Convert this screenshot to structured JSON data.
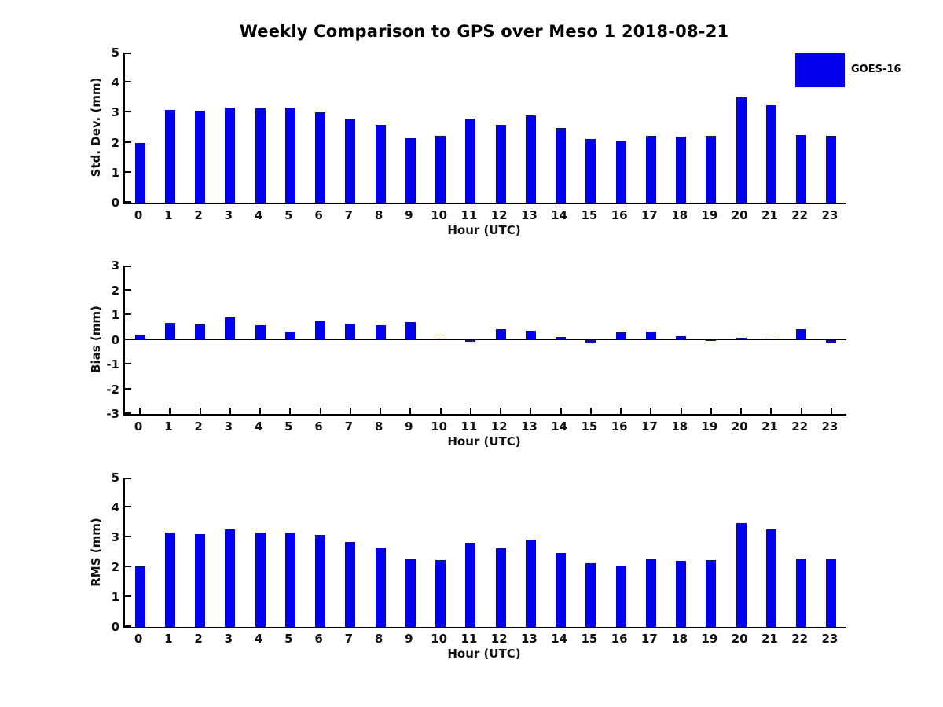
{
  "title": "Weekly Comparison to GPS over Meso 1 2018-08-21",
  "legend": {
    "label": "GOES-16",
    "position": "top-right"
  },
  "colors": {
    "bar": "#0000EE",
    "axis": "#000000",
    "text": "#111111",
    "background": "#FFFFFF"
  },
  "chart_data": [
    {
      "type": "bar",
      "ylabel": "Std. Dev. (mm)",
      "xlabel": "Hour (UTC)",
      "ylim": [
        0,
        5
      ],
      "yticks": [
        0,
        1,
        2,
        3,
        4,
        5
      ],
      "grid": false,
      "categories": [
        "0",
        "1",
        "2",
        "3",
        "4",
        "5",
        "6",
        "7",
        "8",
        "9",
        "10",
        "11",
        "12",
        "13",
        "14",
        "15",
        "16",
        "17",
        "18",
        "19",
        "20",
        "21",
        "22",
        "23"
      ],
      "series": [
        {
          "name": "GOES-16",
          "values": [
            1.98,
            3.1,
            3.05,
            3.17,
            3.14,
            3.17,
            3.02,
            2.78,
            2.6,
            2.15,
            2.22,
            2.8,
            2.6,
            2.9,
            2.49,
            2.12,
            2.04,
            2.22,
            2.2,
            2.22,
            3.5,
            3.24,
            2.25,
            2.22
          ]
        }
      ]
    },
    {
      "type": "bar",
      "ylabel": "Bias (mm)",
      "xlabel": "Hour (UTC)",
      "ylim": [
        -3,
        3
      ],
      "yticks": [
        -3,
        -2,
        -1,
        0,
        1,
        2,
        3
      ],
      "grid": false,
      "categories": [
        "0",
        "1",
        "2",
        "3",
        "4",
        "5",
        "6",
        "7",
        "8",
        "9",
        "10",
        "11",
        "12",
        "13",
        "14",
        "15",
        "16",
        "17",
        "18",
        "19",
        "20",
        "21",
        "22",
        "23"
      ],
      "series": [
        {
          "name": "GOES-16",
          "values": [
            0.2,
            0.67,
            0.61,
            0.9,
            0.58,
            0.33,
            0.77,
            0.64,
            0.58,
            0.73,
            0.05,
            -0.08,
            0.42,
            0.35,
            0.11,
            -0.1,
            0.3,
            0.34,
            0.13,
            -0.02,
            0.07,
            0.04,
            0.42,
            -0.1
          ]
        }
      ]
    },
    {
      "type": "bar",
      "ylabel": "RMS (mm)",
      "xlabel": "Hour (UTC)",
      "ylim": [
        0,
        5
      ],
      "yticks": [
        0,
        1,
        2,
        3,
        4,
        5
      ],
      "grid": false,
      "categories": [
        "0",
        "1",
        "2",
        "3",
        "4",
        "5",
        "6",
        "7",
        "8",
        "9",
        "10",
        "11",
        "12",
        "13",
        "14",
        "15",
        "16",
        "17",
        "18",
        "19",
        "20",
        "21",
        "22",
        "23"
      ],
      "series": [
        {
          "name": "GOES-16",
          "values": [
            2.02,
            3.15,
            3.1,
            3.27,
            3.17,
            3.17,
            3.09,
            2.84,
            2.65,
            2.27,
            2.25,
            2.81,
            2.63,
            2.91,
            2.48,
            2.14,
            2.06,
            2.27,
            2.22,
            2.25,
            3.48,
            3.26,
            2.3,
            2.26
          ]
        }
      ]
    }
  ]
}
